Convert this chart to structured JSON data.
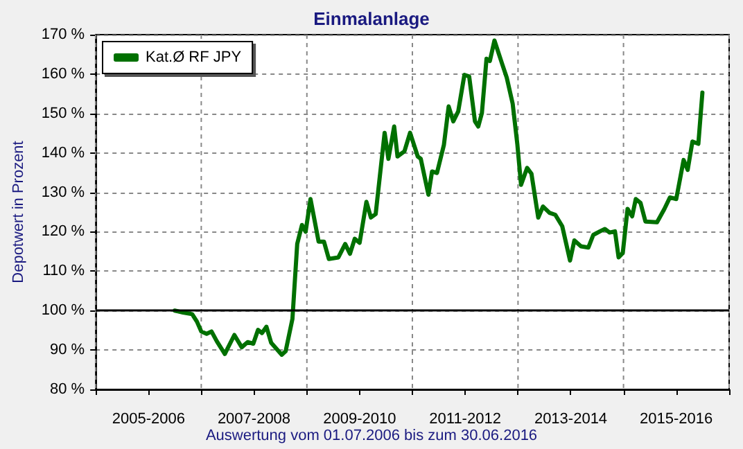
{
  "chart_data": {
    "type": "line",
    "title": "Einmalanlage",
    "ylabel": "Depotwert in Prozent",
    "annotations": [
      "Auswertung vom 01.07.2006 bis zum 30.06.2016"
    ],
    "x": [
      "2006-07-01",
      "2006-08-28",
      "2006-10-30",
      "2006-12-02",
      "2007-01-01",
      "2007-02-07",
      "2007-03-13",
      "2007-04-19",
      "2007-06-13",
      "2007-08-18",
      "2007-10-08",
      "2007-11-18",
      "2007-12-27",
      "2008-01-29",
      "2008-02-25",
      "2008-03-27",
      "2008-04-29",
      "2008-07-11",
      "2008-08-07",
      "2008-09-23",
      "2008-10-26",
      "2008-11-28",
      "2008-12-23",
      "2009-01-26",
      "2009-03-23",
      "2009-04-29",
      "2009-06-02",
      "2009-08-07",
      "2009-09-23",
      "2009-10-26",
      "2009-11-28",
      "2010-01-01",
      "2010-02-17",
      "2010-03-20",
      "2010-04-22",
      "2010-06-23",
      "2010-07-19",
      "2010-08-28",
      "2010-09-20",
      "2010-11-07",
      "2010-12-16",
      "2011-02-07",
      "2011-02-28",
      "2011-04-22",
      "2011-05-17",
      "2011-06-20",
      "2011-08-07",
      "2011-09-09",
      "2011-10-11",
      "2011-11-14",
      "2011-12-27",
      "2012-01-29",
      "2012-03-09",
      "2012-04-01",
      "2012-04-26",
      "2012-05-28",
      "2012-06-20",
      "2012-07-22",
      "2012-09-13",
      "2012-10-15",
      "2012-11-25",
      "2012-12-27",
      "2013-01-22",
      "2013-03-05",
      "2013-04-04",
      "2013-05-21",
      "2013-06-23",
      "2013-08-07",
      "2013-09-16",
      "2013-11-03",
      "2013-12-27",
      "2014-01-26",
      "2014-03-13",
      "2014-05-03",
      "2014-06-06",
      "2014-07-22",
      "2014-08-25",
      "2014-09-27",
      "2014-11-03",
      "2014-11-28",
      "2014-12-27",
      "2015-01-29",
      "2015-03-02",
      "2015-03-27",
      "2015-04-29",
      "2015-06-02",
      "2015-08-21",
      "2015-10-11",
      "2015-11-18",
      "2016-01-01",
      "2016-02-21",
      "2016-03-20",
      "2016-04-22",
      "2016-06-02",
      "2016-06-30"
    ],
    "series": [
      {
        "name": "Kat.Ø RF JPY",
        "color": "#007000",
        "values": [
          100,
          99.5,
          99.1,
          97.2,
          94.7,
          94.1,
          94.7,
          92.2,
          89,
          93.8,
          90.7,
          92,
          91.6,
          95.1,
          94.3,
          95.9,
          91.8,
          88.8,
          89.7,
          97.9,
          116.9,
          121.7,
          120,
          128.3,
          117.5,
          117.5,
          113.1,
          113.5,
          116.9,
          114.4,
          118.2,
          117.2,
          127.6,
          123.6,
          124.5,
          145.1,
          138.5,
          146.7,
          139.1,
          140.4,
          145.1,
          139.1,
          138.5,
          129.4,
          135.3,
          134.9,
          142,
          151.8,
          148,
          150.5,
          159.8,
          159.4,
          148,
          146.7,
          150.1,
          163.9,
          163.3,
          168.5,
          162.6,
          159.1,
          152.5,
          142.3,
          131.9,
          136.2,
          134.7,
          123.6,
          126.4,
          124.8,
          124.3,
          121.4,
          112.7,
          117.8,
          116.3,
          116,
          119.2,
          120.1,
          120.7,
          119.8,
          120.1,
          113.5,
          114.6,
          125.8,
          123.9,
          128.3,
          127.3,
          122.6,
          122.4,
          125.8,
          128.7,
          128.3,
          138.2,
          135.7,
          142.9,
          142.3,
          155.3
        ]
      }
    ],
    "xlim": [
      "2005-01-01",
      "2017-01-01"
    ],
    "xticks": [
      {
        "value": "2005-01-01",
        "label": null
      },
      {
        "value": "2006-01-01",
        "label": "2005-2006"
      },
      {
        "value": "2007-01-01",
        "label": null
      },
      {
        "value": "2008-01-01",
        "label": "2007-2008"
      },
      {
        "value": "2009-01-01",
        "label": null
      },
      {
        "value": "2010-01-01",
        "label": "2009-2010"
      },
      {
        "value": "2011-01-01",
        "label": null
      },
      {
        "value": "2012-01-01",
        "label": "2011-2012"
      },
      {
        "value": "2013-01-01",
        "label": null
      },
      {
        "value": "2014-01-01",
        "label": "2013-2014"
      },
      {
        "value": "2015-01-01",
        "label": null
      },
      {
        "value": "2016-01-01",
        "label": "2015-2016"
      },
      {
        "value": "2017-01-01",
        "label": null
      }
    ],
    "ylim": [
      80,
      170
    ],
    "yticks": [
      {
        "value": 80,
        "label": "80 %"
      },
      {
        "value": 90,
        "label": "90 %"
      },
      {
        "value": 100,
        "label": "100 %"
      },
      {
        "value": 110,
        "label": "110 %"
      },
      {
        "value": 120,
        "label": "120 %"
      },
      {
        "value": 130,
        "label": "130 %"
      },
      {
        "value": 140,
        "label": "140 %"
      },
      {
        "value": 150,
        "label": "150 %"
      },
      {
        "value": 160,
        "label": "160 %"
      },
      {
        "value": 170,
        "label": "170 %"
      }
    ],
    "ref_lines": [
      {
        "axis": "y",
        "value": 100,
        "color": "#000000"
      }
    ],
    "grid": true,
    "legend": "top left",
    "marker": "none",
    "line_style": "solid"
  }
}
